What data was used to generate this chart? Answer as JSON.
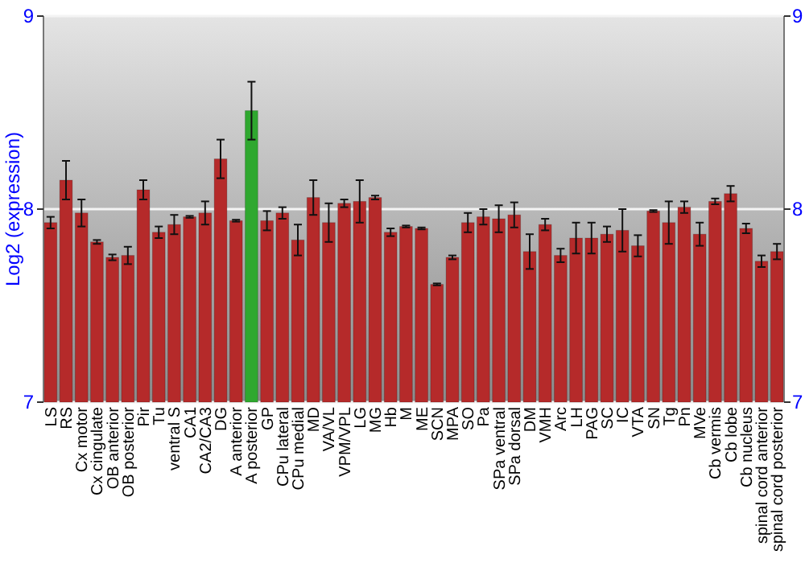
{
  "chart_data": {
    "type": "bar",
    "ylabel": "Log2 (expression)",
    "categories": [
      "LS",
      "RS",
      "Cx motor",
      "Cx cingulate",
      "OB anterior",
      "OB posterior",
      "Pir",
      "Tu",
      "ventral S",
      "CA1",
      "CA2/CA3",
      "DG",
      "A anterior",
      "A posterior",
      "GP",
      "CPu lateral",
      "CPu medial",
      "MD",
      "VA/VL",
      "VPM/VPL",
      "LG",
      "MG",
      "Hb",
      "M",
      "ME",
      "SCN",
      "MPA",
      "SO",
      "Pa",
      "SPa ventral",
      "SPa dorsal",
      "DM",
      "VMH",
      "Arc",
      "LH",
      "PAG",
      "SC",
      "IC",
      "VTA",
      "SN",
      "Tg",
      "Pn",
      "MVe",
      "Cb vermis",
      "Cb lobe",
      "Cb nucleus",
      "spinal cord anterior",
      "spinal cord posterior"
    ],
    "values": [
      7.93,
      8.15,
      7.98,
      7.83,
      7.75,
      7.76,
      8.1,
      7.88,
      7.92,
      7.96,
      7.98,
      8.26,
      7.94,
      8.51,
      7.94,
      7.98,
      7.84,
      8.06,
      7.93,
      8.03,
      8.04,
      8.06,
      7.88,
      7.91,
      7.9,
      7.61,
      7.75,
      7.93,
      7.96,
      7.95,
      7.97,
      7.78,
      7.92,
      7.76,
      7.85,
      7.85,
      7.87,
      7.89,
      7.81,
      7.99,
      7.93,
      8.01,
      7.87,
      8.04,
      8.08,
      7.9,
      7.73,
      7.78
    ],
    "errors": [
      0.03,
      0.1,
      0.07,
      0.01,
      0.015,
      0.045,
      0.05,
      0.03,
      0.05,
      0.005,
      0.06,
      0.1,
      0.005,
      0.15,
      0.05,
      0.03,
      0.08,
      0.09,
      0.1,
      0.02,
      0.11,
      0.01,
      0.02,
      0.005,
      0.005,
      0.005,
      0.01,
      0.05,
      0.04,
      0.07,
      0.065,
      0.09,
      0.03,
      0.035,
      0.08,
      0.08,
      0.04,
      0.11,
      0.055,
      0.005,
      0.11,
      0.03,
      0.06,
      0.015,
      0.04,
      0.025,
      0.03,
      0.04
    ],
    "colors": [
      "#b52a2a",
      "#b52a2a",
      "#b52a2a",
      "#b52a2a",
      "#b52a2a",
      "#b52a2a",
      "#b52a2a",
      "#b52a2a",
      "#b52a2a",
      "#b52a2a",
      "#b52a2a",
      "#b52a2a",
      "#b52a2a",
      "#2fa82f",
      "#b52a2a",
      "#b52a2a",
      "#b52a2a",
      "#b52a2a",
      "#b52a2a",
      "#b52a2a",
      "#b52a2a",
      "#b52a2a",
      "#b52a2a",
      "#b52a2a",
      "#b52a2a",
      "#b52a2a",
      "#b52a2a",
      "#b52a2a",
      "#b52a2a",
      "#b52a2a",
      "#b52a2a",
      "#b52a2a",
      "#b52a2a",
      "#b52a2a",
      "#b52a2a",
      "#b52a2a",
      "#b52a2a",
      "#b52a2a",
      "#b52a2a",
      "#b52a2a",
      "#b52a2a",
      "#b52a2a",
      "#b52a2a",
      "#b52a2a",
      "#b52a2a",
      "#b52a2a",
      "#b52a2a",
      "#b52a2a"
    ],
    "ylim": [
      7,
      9
    ],
    "yticks": [
      7,
      8,
      9
    ],
    "y2lim": [
      7,
      9
    ],
    "y2ticks": [
      7,
      8,
      9
    ],
    "grid": "y"
  }
}
